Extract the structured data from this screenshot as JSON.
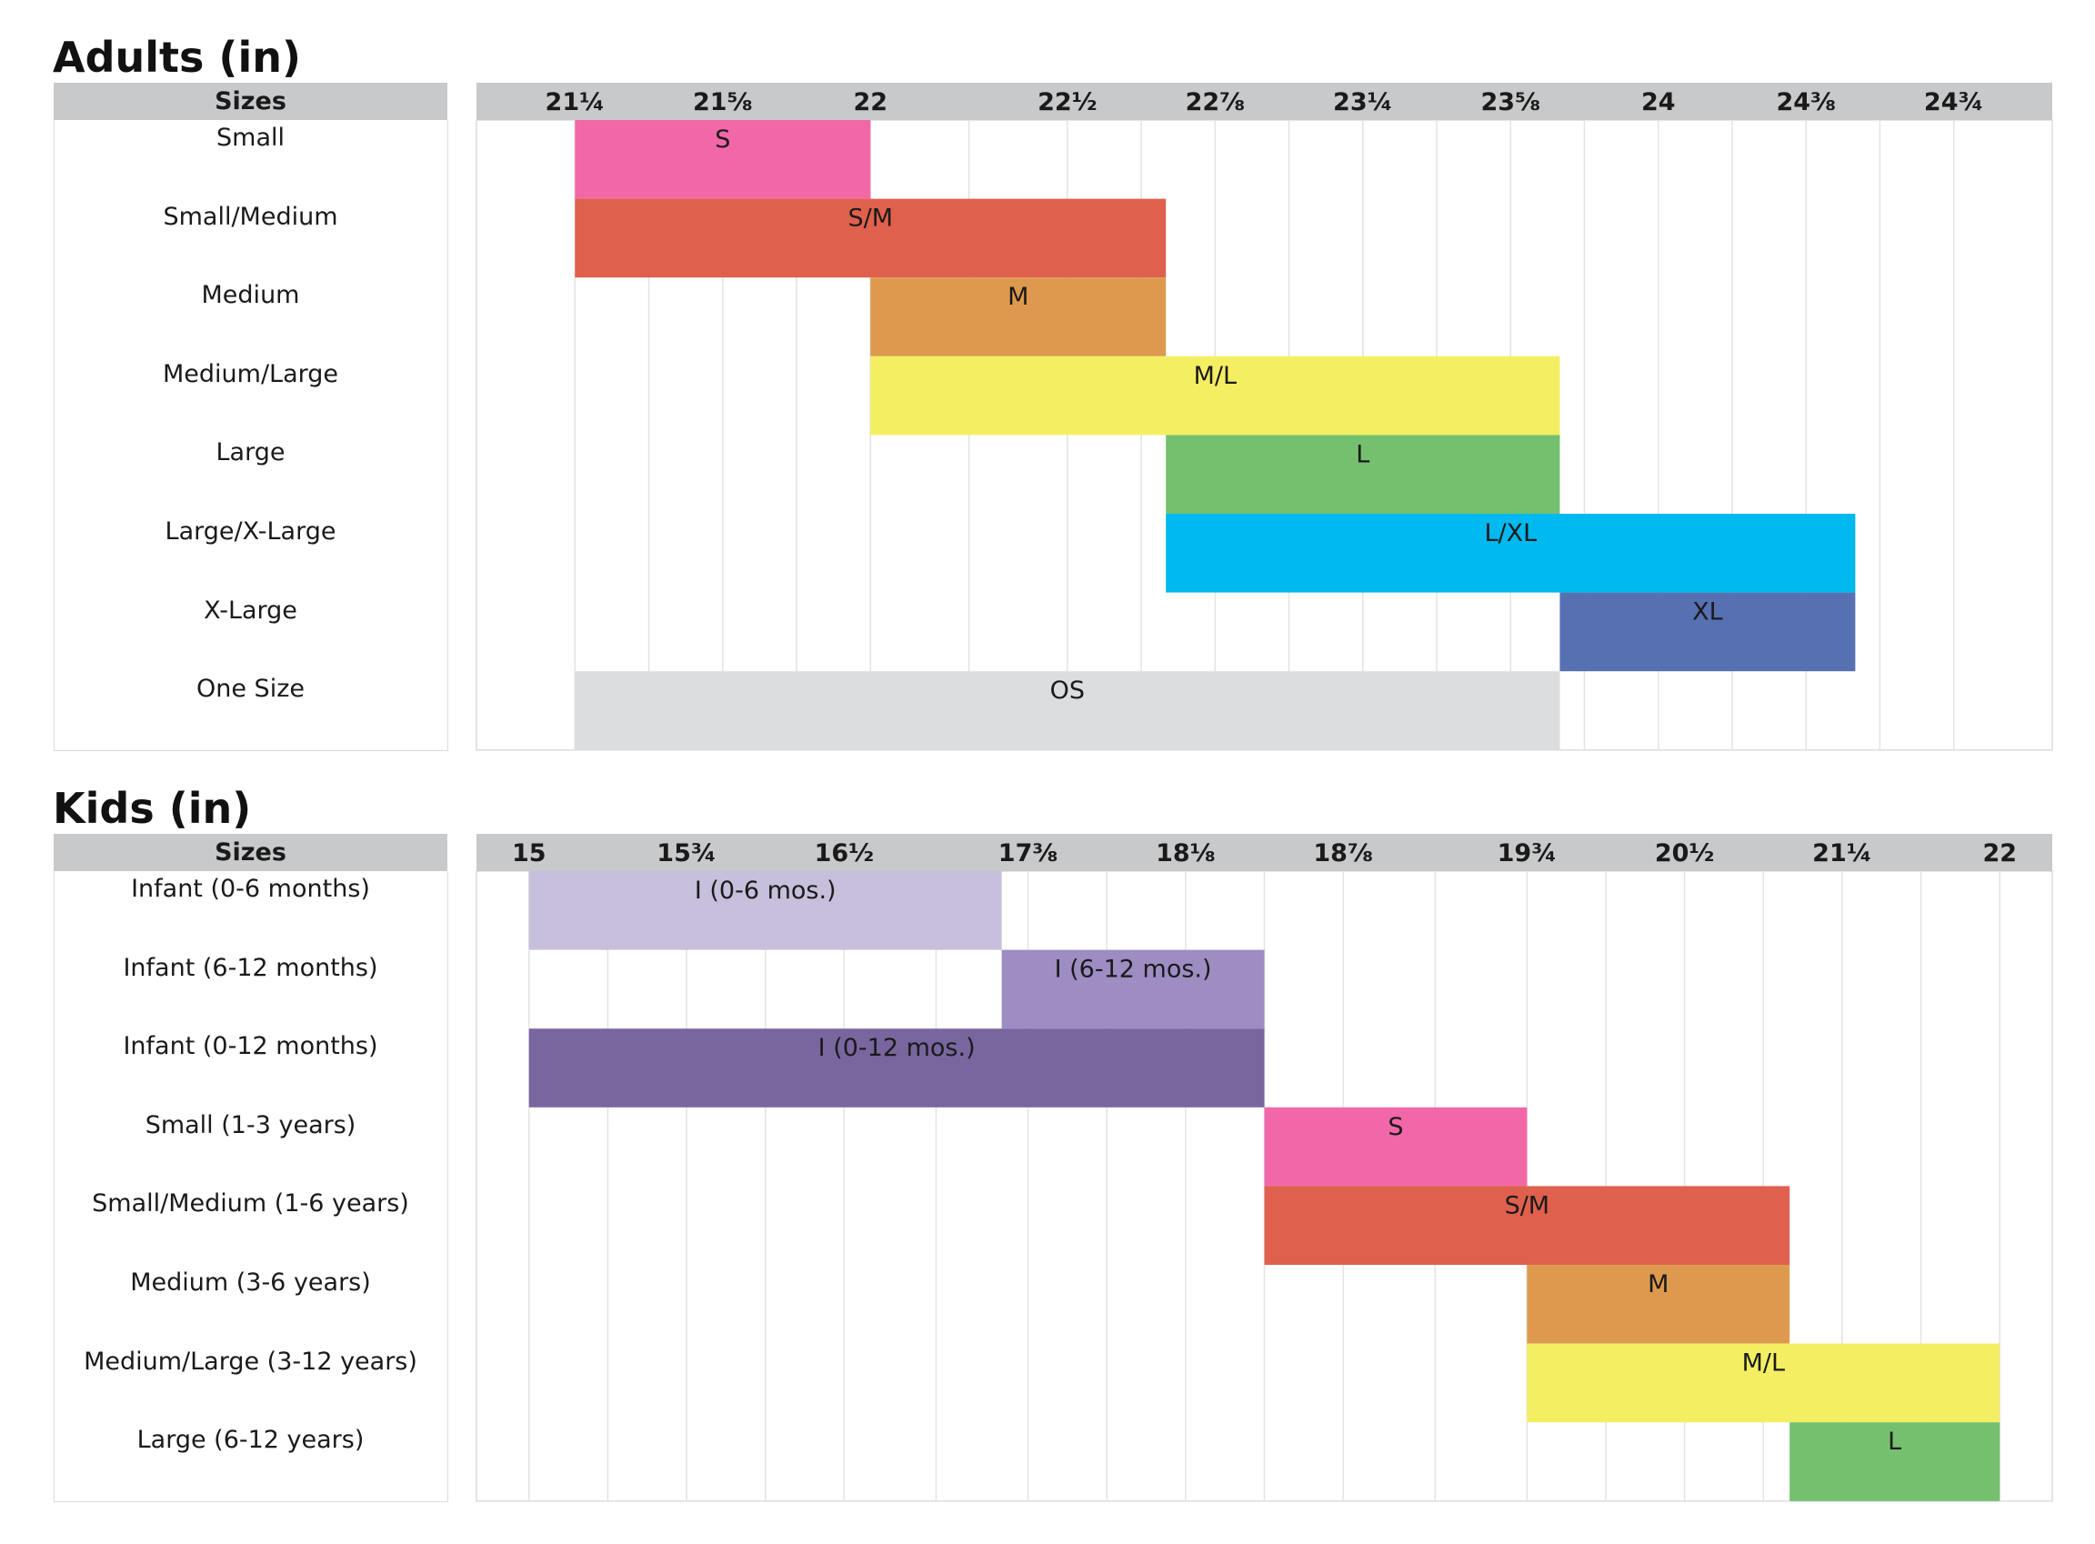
{
  "colors": {
    "header_bg": "#c8c9cb",
    "grid": "#e3e3e3",
    "pink": "#f267a8",
    "red_orange": "#df614d",
    "orange": "#dd9a4e",
    "yellow": "#f4ef62",
    "green": "#74c06e",
    "cyan": "#00b9ee",
    "blue": "#5670b1",
    "light_gray": "#dcdddf",
    "lavender_light": "#c7bfdb",
    "lavender": "#9d8dc3",
    "purple": "#79669f"
  },
  "adults": {
    "title": "Adults (in)",
    "sizes_header": "Sizes",
    "rows": [
      "Small",
      "Small/Medium",
      "Medium",
      "Medium/Large",
      "Large",
      "Large/X-Large",
      "X-Large",
      "One Size"
    ]
  },
  "kids": {
    "title": "Kids (in)",
    "sizes_header": "Sizes",
    "rows": [
      "Infant (0-6 months)",
      "Infant (6-12 months)",
      "Infant (0-12 months)",
      "Small (1-3 years)",
      "Small/Medium (1-6 years)",
      "Medium (3-6 years)",
      "Medium/Large (3-12 years)",
      "Large (6-12 years)"
    ]
  },
  "chart_data": [
    {
      "type": "gantt-range",
      "title": "Adults (in)",
      "unit": "in",
      "tick_labels": [
        "21¼",
        "21⅝",
        "22",
        "22½",
        "22⅞",
        "23¼",
        "23⅝",
        "24",
        "24⅜",
        "24¾"
      ],
      "tick_values": [
        21.25,
        21.625,
        22,
        22.5,
        22.875,
        23.25,
        23.625,
        24,
        24.375,
        24.75
      ],
      "xlim": [
        21.0,
        25.0
      ],
      "series": [
        {
          "row": "Small",
          "label": "S",
          "start": 21.25,
          "end": 22.0,
          "color": "#f267a8"
        },
        {
          "row": "Small/Medium",
          "label": "S/M",
          "start": 21.25,
          "end": 22.75,
          "color": "#df614d"
        },
        {
          "row": "Medium",
          "label": "M",
          "start": 22.0,
          "end": 22.75,
          "color": "#dd9a4e"
        },
        {
          "row": "Medium/Large",
          "label": "M/L",
          "start": 22.0,
          "end": 23.75,
          "color": "#f4ef62"
        },
        {
          "row": "Large",
          "label": "L",
          "start": 22.75,
          "end": 23.75,
          "color": "#74c06e"
        },
        {
          "row": "Large/X-Large",
          "label": "L/XL",
          "start": 22.75,
          "end": 24.5,
          "color": "#00b9ee"
        },
        {
          "row": "X-Large",
          "label": "XL",
          "start": 23.75,
          "end": 24.5,
          "color": "#5670b1"
        },
        {
          "row": "One Size",
          "label": "OS",
          "start": 21.25,
          "end": 23.75,
          "color": "#dcdddf"
        }
      ]
    },
    {
      "type": "gantt-range",
      "title": "Kids (in)",
      "unit": "in",
      "tick_labels": [
        "15",
        "15¾",
        "16½",
        "17⅜",
        "18⅛",
        "18⅞",
        "19¾",
        "20½",
        "21¼",
        "22"
      ],
      "tick_values": [
        15,
        15.75,
        16.5,
        17.375,
        18.125,
        18.875,
        19.75,
        20.5,
        21.25,
        22
      ],
      "xlim": [
        14.75,
        22.25
      ],
      "series": [
        {
          "row": "Infant (0-6 months)",
          "label": "I (0-6 mos.)",
          "start": 15.0,
          "end": 17.25,
          "color": "#c7bfdb"
        },
        {
          "row": "Infant (6-12 months)",
          "label": "I (6-12 mos.)",
          "start": 17.25,
          "end": 18.5,
          "color": "#9d8dc3"
        },
        {
          "row": "Infant (0-12 months)",
          "label": "I (0-12 mos.)",
          "start": 15.0,
          "end": 18.5,
          "color": "#79669f"
        },
        {
          "row": "Small (1-3 years)",
          "label": "S",
          "start": 18.5,
          "end": 19.75,
          "color": "#f267a8"
        },
        {
          "row": "Small/Medium (1-6 years)",
          "label": "S/M",
          "start": 18.5,
          "end": 21.0,
          "color": "#df614d"
        },
        {
          "row": "Medium (3-6 years)",
          "label": "M",
          "start": 19.75,
          "end": 21.0,
          "color": "#dd9a4e"
        },
        {
          "row": "Medium/Large (3-12 years)",
          "label": "M/L",
          "start": 19.75,
          "end": 22.0,
          "color": "#f4ef62"
        },
        {
          "row": "Large (6-12 years)",
          "label": "L",
          "start": 21.0,
          "end": 22.0,
          "color": "#74c06e"
        }
      ]
    }
  ]
}
